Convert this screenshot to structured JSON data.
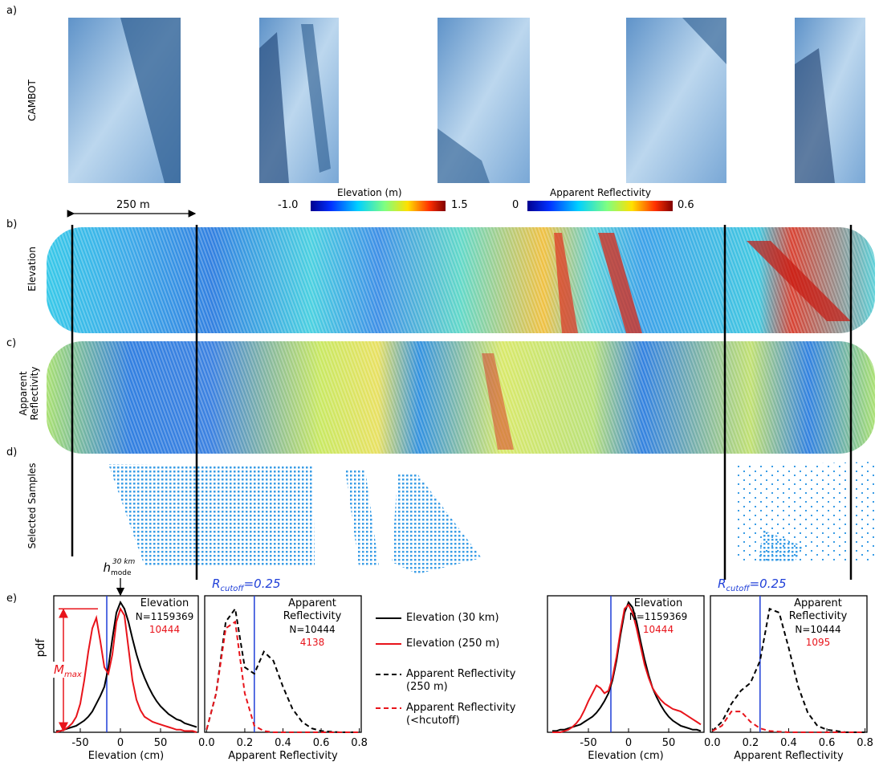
{
  "figure": {
    "panel_labels": [
      "a)",
      "b)",
      "c)",
      "d)",
      "e)"
    ],
    "row_labels": [
      "CAMBOT",
      "Elevation",
      "Apparent Reflectivity",
      "Selected Samples"
    ],
    "scale_bar": "250 m",
    "colorbars": [
      {
        "title": "Elevation (m)",
        "min": "-1.0",
        "max": "1.5"
      },
      {
        "title": "Apparent Reflectivity",
        "min": "0",
        "max": "0.6"
      }
    ]
  },
  "chart_data": [
    {
      "type": "line",
      "title": "Elevation",
      "n_label": "N=1159369",
      "n_selected": 10444,
      "xlabel": "Elevation (cm)",
      "ylabel": "pdf",
      "xlim": [
        -83,
        97
      ],
      "ylim": [
        0,
        1.05
      ],
      "xticks": [
        -50,
        0,
        50
      ],
      "hcutoff": -17,
      "mode": 0,
      "mode_label": [
        "h",
        "mode",
        "30 km"
      ],
      "mmax_label": [
        "M",
        "max"
      ],
      "x": [
        -80,
        -75,
        -70,
        -65,
        -60,
        -55,
        -50,
        -45,
        -40,
        -35,
        -30,
        -25,
        -20,
        -15,
        -10,
        -5,
        0,
        5,
        10,
        15,
        20,
        25,
        30,
        35,
        40,
        45,
        50,
        55,
        60,
        65,
        70,
        75,
        80,
        85,
        90,
        95
      ],
      "series": [
        {
          "name": "Elevation (30 km)",
          "color": "#000000",
          "values": [
            0.01,
            0.01,
            0.02,
            0.03,
            0.04,
            0.05,
            0.07,
            0.09,
            0.12,
            0.16,
            0.22,
            0.28,
            0.35,
            0.5,
            0.72,
            0.92,
            1.0,
            0.95,
            0.85,
            0.72,
            0.6,
            0.5,
            0.42,
            0.35,
            0.29,
            0.24,
            0.2,
            0.17,
            0.14,
            0.12,
            0.1,
            0.09,
            0.07,
            0.06,
            0.05,
            0.04
          ]
        },
        {
          "name": "Elevation (250 m)",
          "color": "#e8141b",
          "values": [
            0,
            0.01,
            0.02,
            0.04,
            0.07,
            0.12,
            0.22,
            0.4,
            0.62,
            0.8,
            0.88,
            0.7,
            0.5,
            0.45,
            0.6,
            0.85,
            0.95,
            0.9,
            0.65,
            0.4,
            0.25,
            0.17,
            0.12,
            0.1,
            0.08,
            0.07,
            0.06,
            0.05,
            0.04,
            0.03,
            0.02,
            0.02,
            0.01,
            0.01,
            0.01,
            0
          ]
        }
      ]
    },
    {
      "type": "line",
      "title": "Apparent Reflectivity",
      "n_label": "N=10444",
      "n_selected": 4138,
      "xlabel": "Apparent Reflectivity",
      "xlim": [
        -0.01,
        0.81
      ],
      "ylim": [
        0,
        1.05
      ],
      "xticks": [
        {
          "value": 0,
          "label": "0.0"
        },
        0.2,
        0.4,
        0.6,
        0.8
      ],
      "cutoff": 0.25,
      "cutoff_label": [
        "R",
        "cutoff",
        "=0.25"
      ],
      "x": [
        0,
        0.05,
        0.1,
        0.15,
        0.2,
        0.25,
        0.3,
        0.35,
        0.4,
        0.45,
        0.5,
        0.55,
        0.6,
        0.65,
        0.7,
        0.75,
        0.8
      ],
      "series": [
        {
          "name": "Apparent Reflectivity (250 m)",
          "color": "#000000",
          "dash": true,
          "values": [
            0.02,
            0.3,
            0.85,
            0.95,
            0.5,
            0.45,
            0.62,
            0.55,
            0.35,
            0.18,
            0.08,
            0.03,
            0.01,
            0.005,
            0,
            0,
            0
          ]
        },
        {
          "name": "Apparent Reflectivity (<hcutoff)",
          "color": "#e8141b",
          "dash": true,
          "values": [
            0.02,
            0.3,
            0.8,
            0.85,
            0.3,
            0.05,
            0.01,
            0,
            0,
            0,
            0,
            0,
            0,
            0,
            0,
            0,
            0
          ]
        }
      ]
    },
    {
      "type": "line",
      "title": "Elevation",
      "n_label": "N=1159369",
      "n_selected": 10444,
      "xlabel": "Elevation (cm)",
      "xlim": [
        -101,
        94
      ],
      "ylim": [
        0,
        1.05
      ],
      "xticks": [
        -50,
        0,
        50
      ],
      "hcutoff": -22,
      "x": [
        -95,
        -90,
        -85,
        -80,
        -75,
        -70,
        -65,
        -60,
        -55,
        -50,
        -45,
        -40,
        -35,
        -30,
        -25,
        -20,
        -15,
        -10,
        -5,
        0,
        5,
        10,
        15,
        20,
        25,
        30,
        35,
        40,
        45,
        50,
        55,
        60,
        65,
        70,
        75,
        80,
        85,
        90
      ],
      "series": [
        {
          "color": "#000000",
          "values": [
            0.01,
            0.01,
            0.02,
            0.02,
            0.03,
            0.04,
            0.05,
            0.06,
            0.08,
            0.1,
            0.12,
            0.15,
            0.19,
            0.24,
            0.3,
            0.4,
            0.55,
            0.75,
            0.92,
            1.0,
            0.96,
            0.85,
            0.7,
            0.56,
            0.44,
            0.34,
            0.27,
            0.21,
            0.16,
            0.12,
            0.09,
            0.07,
            0.05,
            0.04,
            0.03,
            0.02,
            0.02,
            0.01
          ]
        },
        {
          "color": "#e8141b",
          "values": [
            0,
            0,
            0,
            0.01,
            0.02,
            0.04,
            0.07,
            0.11,
            0.17,
            0.24,
            0.3,
            0.36,
            0.34,
            0.3,
            0.32,
            0.42,
            0.58,
            0.78,
            0.95,
            0.98,
            0.92,
            0.8,
            0.66,
            0.52,
            0.42,
            0.34,
            0.29,
            0.25,
            0.22,
            0.2,
            0.18,
            0.17,
            0.16,
            0.14,
            0.12,
            0.1,
            0.08,
            0.06
          ]
        }
      ]
    },
    {
      "type": "line",
      "title": "Apparent Reflectivity",
      "n_label": "N=10444",
      "n_selected": 1095,
      "xlabel": "Apparent Reflectivity",
      "xlim": [
        -0.01,
        0.81
      ],
      "ylim": [
        0,
        1.05
      ],
      "xticks": [
        {
          "value": 0,
          "label": "0.0"
        },
        0.2,
        0.4,
        0.6,
        0.8
      ],
      "cutoff": 0.25,
      "cutoff_label": [
        "R",
        "cutoff",
        "=0.25"
      ],
      "x": [
        0,
        0.05,
        0.1,
        0.15,
        0.2,
        0.25,
        0.3,
        0.35,
        0.4,
        0.45,
        0.5,
        0.55,
        0.6,
        0.65,
        0.7,
        0.75,
        0.8
      ],
      "series": [
        {
          "color": "#000000",
          "dash": true,
          "values": [
            0.01,
            0.08,
            0.22,
            0.32,
            0.38,
            0.55,
            0.95,
            0.92,
            0.65,
            0.35,
            0.15,
            0.05,
            0.02,
            0.01,
            0,
            0,
            0
          ]
        },
        {
          "color": "#e8141b",
          "dash": true,
          "values": [
            0.01,
            0.05,
            0.16,
            0.16,
            0.08,
            0.03,
            0.01,
            0.005,
            0,
            0,
            0,
            0,
            0,
            0,
            0,
            0,
            0
          ]
        }
      ]
    }
  ]
}
